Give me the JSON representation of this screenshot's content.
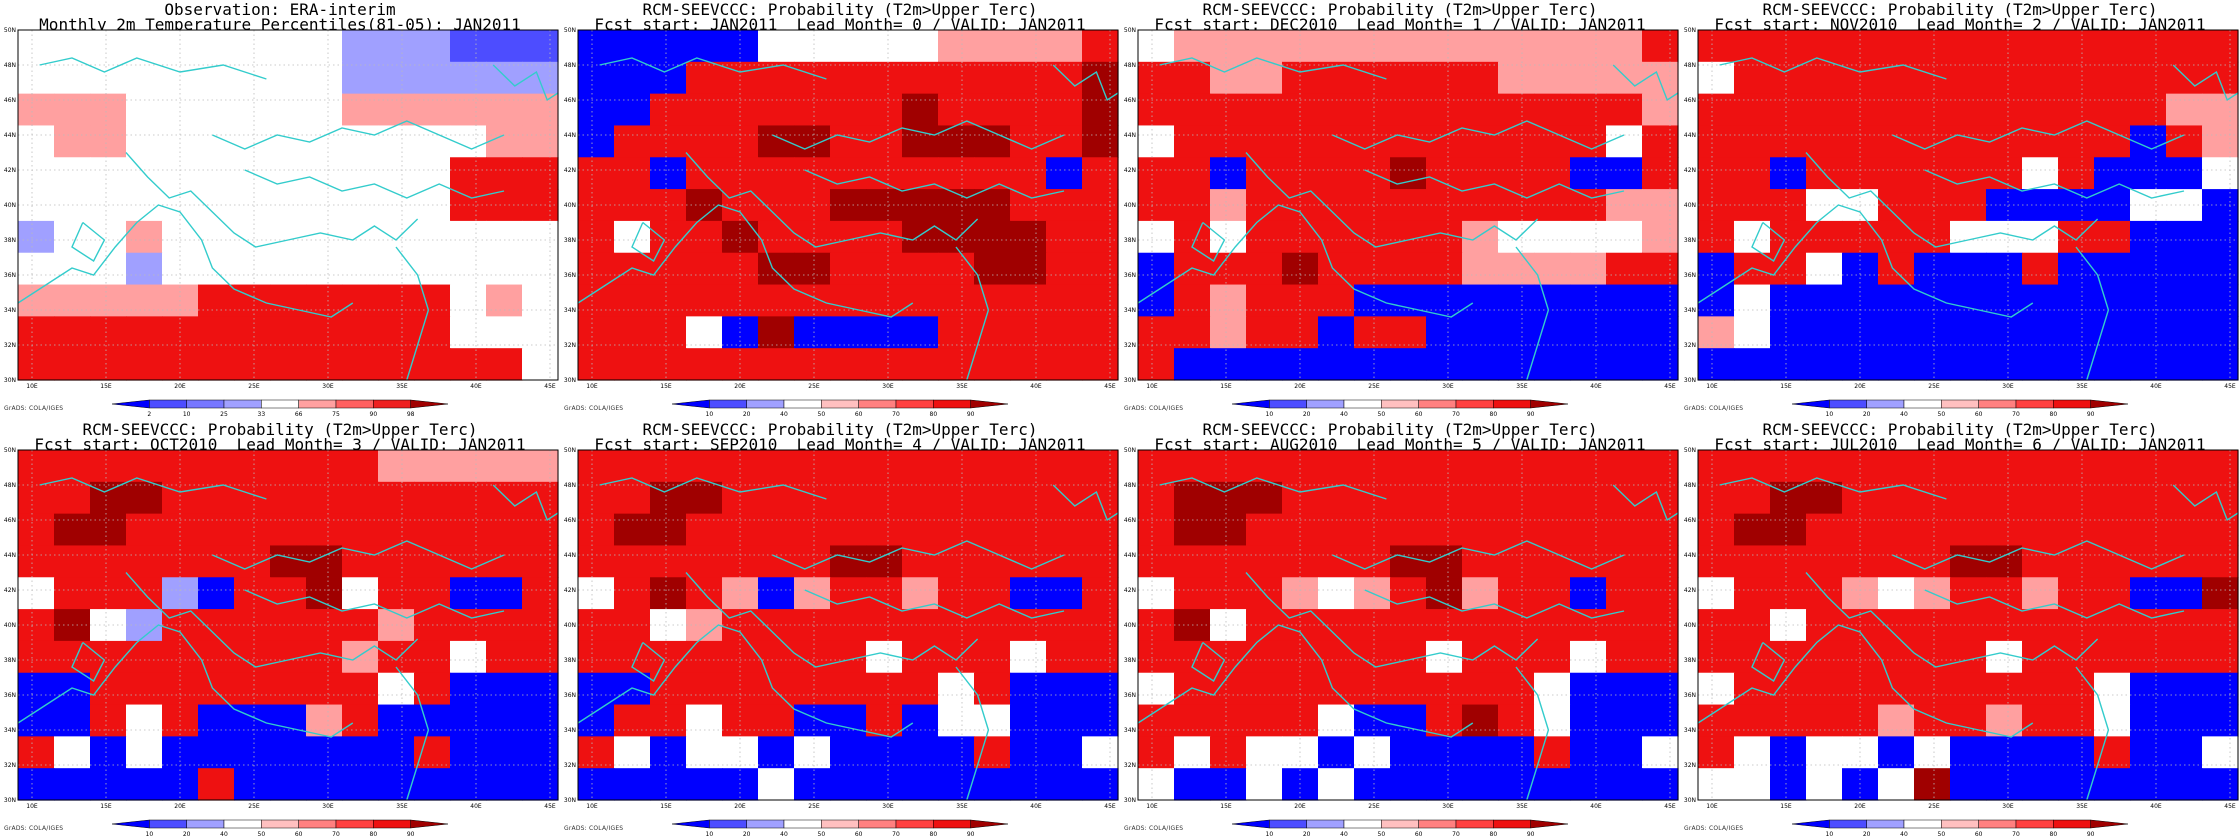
{
  "colors": {
    "dark_blue": "#0000ff",
    "mid_blue": "#4d4dff",
    "light_blue": "#a0a0ff",
    "white": "#ffffff",
    "light_red": "#ffa0a0",
    "mid_red": "#ff4040",
    "red": "#ee1111",
    "dark_red": "#a00000",
    "coast": "#33cccc",
    "grid": "#bbbbbb"
  },
  "axes": {
    "lat_labels": [
      "30N",
      "32N",
      "34N",
      "36N",
      "38N",
      "40N",
      "42N",
      "44N",
      "46N",
      "48N",
      "50N"
    ],
    "lon_labels": [
      "10E",
      "15E",
      "20E",
      "25E",
      "30E",
      "35E",
      "40E",
      "45E"
    ]
  },
  "credit": "GrADS: COLA/IGES",
  "panels": [
    {
      "title1": "Observation: ERA-interim",
      "title2": "Monthly 2m Temperature Percentiles(81-05): JAN2011",
      "colorbar_labels": [
        "2",
        "10",
        "25",
        "33",
        "66",
        "75",
        "90",
        "98"
      ],
      "colorbar_colors": [
        "#0000ff",
        "#4d4dff",
        "#7777ff",
        "#a0a0ff",
        "#ffffff",
        "#ffa0a0",
        "#ff6060",
        "#ee2020",
        "#a00000"
      ],
      "grid": [
        "WWWWWWWWWLLLMMM",
        "WWWWWWWWWLLLLLL",
        "PPPWWWWWWPPPPPP",
        "WPPWWWWWWWWWWPP",
        "WWWWWWWWWWWWRRR",
        "WWWWWWWWWWWWRRR",
        "LWWPWWWWWWWWWWW",
        "WWWLWWWWWWWWWWW",
        "PPPPPRRRRRRRWPW",
        "RRRRRRRRRRRRWWW",
        "RRRRRRRRRRRRRRW"
      ]
    },
    {
      "title1": "RCM-SEEVCCC: Probability (T2m>Upper Terc)",
      "title2": "Fcst start: JAN2011  Lead Month= 0 / VALID: JAN2011",
      "colorbar_labels": [
        "10",
        "20",
        "40",
        "50",
        "60",
        "70",
        "80",
        "90"
      ],
      "colorbar_colors": [
        "#0000ff",
        "#4d4dff",
        "#a0a0ff",
        "#ffffff",
        "#ffc0c0",
        "#ff8080",
        "#ff4040",
        "#ee1111",
        "#a00000"
      ],
      "grid": [
        "BBBBBWWWWWPPPPR",
        "BBBRRRRRRRRRRRD",
        "BBRRRRRRRDRRRRD",
        "BRRRRDDRRDDDRRD",
        "RRBRRRRRRRRRRBR",
        "RRRDRRRDDDDDRRR",
        "RWRRDRRRRDDDDRR",
        "RRRRRDDRRRRDDRR",
        "RRRRRRRRRRRRRRR",
        "RRRWBDBBBBRRRRR",
        "RRRRRRRRRRRRRRR"
      ]
    },
    {
      "title1": "RCM-SEEVCCC: Probability (T2m>Upper Terc)",
      "title2": "Fcst start: DEC2010  Lead Month= 1 / VALID: JAN2011",
      "colorbar_labels": [
        "10",
        "20",
        "40",
        "50",
        "60",
        "70",
        "80",
        "90"
      ],
      "colorbar_colors": [
        "#0000ff",
        "#4d4dff",
        "#a0a0ff",
        "#ffffff",
        "#ffc0c0",
        "#ff8080",
        "#ff4040",
        "#ee1111",
        "#a00000"
      ],
      "grid": [
        "WPPPPPPPPPPPPPR",
        "RRPPRRRRRRPPPPP",
        "RRRRRRRRRRRRRRP",
        "WRRRRRRRRRRRRWR",
        "RRBRRRRDRRRRBBR",
        "RRPRRRRRRRRRRPP",
        "WRWRRRRRRPWWWWP",
        "BRRRDRRRRPPPPRR",
        "BRPRRRBBBBBBBBB",
        "RRPRRBRRBBBBBBB",
        "RBBBBBBBBBBBBBB"
      ]
    },
    {
      "title1": "RCM-SEEVCCC: Probability (T2m>Upper Terc)",
      "title2": "Fcst start: NOV2010  Lead Month= 2 / VALID: JAN2011",
      "colorbar_labels": [
        "10",
        "20",
        "40",
        "50",
        "60",
        "70",
        "80",
        "90"
      ],
      "colorbar_colors": [
        "#0000ff",
        "#4d4dff",
        "#a0a0ff",
        "#ffffff",
        "#ffc0c0",
        "#ff8080",
        "#ff4040",
        "#ee1111",
        "#a00000"
      ],
      "grid": [
        "RRRRRRRRRRRRRRR",
        "WRRRRRRRRRRRRRR",
        "RRRRRRRRRRRRRPP",
        "RRRRRRRRRRRRBRP",
        "RRBRRRRRRWRBBBW",
        "RRRWWRRRBBBBWWB",
        "RWRRRRRWWWRRBBB",
        "BRRWBRBBBRBBBBB",
        "BWBBBBBBBBBBBBB",
        "PWBBBBBBBBBBBBB",
        "BBBBBBBBBBBBBBB"
      ]
    },
    {
      "title1": "RCM-SEEVCCC: Probability (T2m>Upper Terc)",
      "title2": "Fcst start: OCT2010  Lead Month= 3 / VALID: JAN2011",
      "colorbar_labels": [
        "10",
        "20",
        "40",
        "50",
        "60",
        "70",
        "80",
        "90"
      ],
      "colorbar_colors": [
        "#0000ff",
        "#4d4dff",
        "#a0a0ff",
        "#ffffff",
        "#ffc0c0",
        "#ff8080",
        "#ff4040",
        "#ee1111",
        "#a00000"
      ],
      "grid": [
        "RRRRRRRRRRPPPPP",
        "RRDDRRRRRRRRRRR",
        "RDDRRRRRRRRRRRR",
        "RRRRRRRDDRRRRRR",
        "WRRRLBRRDWRRBBR",
        "RDWLRRRRRRPRRRR",
        "RRRRRRRRRPRRWRR",
        "BBRRRRRRRRWRBBB",
        "BBRWRBBBPRBBBBB",
        "RWBWBBBBBBBRBBB",
        "BBBBBRBBBBBBBBB"
      ]
    },
    {
      "title1": "RCM-SEEVCCC: Probability (T2m>Upper Terc)",
      "title2": "Fcst start: SEP2010  Lead Month= 4 / VALID: JAN2011",
      "colorbar_labels": [
        "10",
        "20",
        "40",
        "50",
        "60",
        "70",
        "80",
        "90"
      ],
      "colorbar_colors": [
        "#0000ff",
        "#4d4dff",
        "#a0a0ff",
        "#ffffff",
        "#ffc0c0",
        "#ff8080",
        "#ff4040",
        "#ee1111",
        "#a00000"
      ],
      "grid": [
        "RRRRRRRRRRRRRRR",
        "RRDDRRRRRRRRRRR",
        "RDDRRRRRRRRRRRR",
        "RRRRRRRDDRRRRRR",
        "WRDRPBPRRPRRBBR",
        "RRWPRRRRRRRRRRR",
        "RRRRRRRRWRRRWRR",
        "BBRRRRRRRRWRBBB",
        "BRRWRRBBRBWWBBB",
        "RWBWWBWBBBBRBBW",
        "BBBBBWBBBBBBBBB"
      ]
    },
    {
      "title1": "RCM-SEEVCCC: Probability (T2m>Upper Terc)",
      "title2": "Fcst start: AUG2010  Lead Month= 5 / VALID: JAN2011",
      "colorbar_labels": [
        "10",
        "20",
        "40",
        "50",
        "60",
        "70",
        "80",
        "90"
      ],
      "colorbar_colors": [
        "#0000ff",
        "#4d4dff",
        "#a0a0ff",
        "#ffffff",
        "#ffc0c0",
        "#ff8080",
        "#ff4040",
        "#ee1111",
        "#a00000"
      ],
      "grid": [
        "RRRRRRRRRRRRRRR",
        "RDDDRRRRRRRRRRR",
        "RDDRRRRRRRRRRRR",
        "RRRRRRRDDRRRRRR",
        "WRRRPWPRDPRRBRR",
        "RDWRRRRRRRRRRRR",
        "RRRRRRRRWRRRWRR",
        "WRRRRRRRRRRWBBB",
        "RRRRRWBBRDRWBBB",
        "RWRWWBWBBBBRBBW",
        "WBBWBWBBBBBBBBB"
      ]
    },
    {
      "title1": "RCM-SEEVCCC: Probability (T2m>Upper Terc)",
      "title2": "Fcst start: JUL2010  Lead Month= 6 / VALID: JAN2011",
      "colorbar_labels": [
        "10",
        "20",
        "40",
        "50",
        "60",
        "70",
        "80",
        "90"
      ],
      "colorbar_colors": [
        "#0000ff",
        "#4d4dff",
        "#a0a0ff",
        "#ffffff",
        "#ffc0c0",
        "#ff8080",
        "#ff4040",
        "#ee1111",
        "#a00000"
      ],
      "grid": [
        "RRRRRRRRRRRRRRR",
        "RRDDRRRRRRRRRRR",
        "RDDRRRRRRRRRRRR",
        "RRRRRRRDDRRRRRR",
        "WRRRPWPRRPRRBBD",
        "RRWRRRRRRRRRRRR",
        "RRRRRRRRWRRRRRR",
        "WRRRRRRRRRRWBBB",
        "RRRRRPRRPRRWBBB",
        "RWBWWBWBBBBRBBW",
        "WWBWBWDBBBBBBBB"
      ]
    }
  ]
}
